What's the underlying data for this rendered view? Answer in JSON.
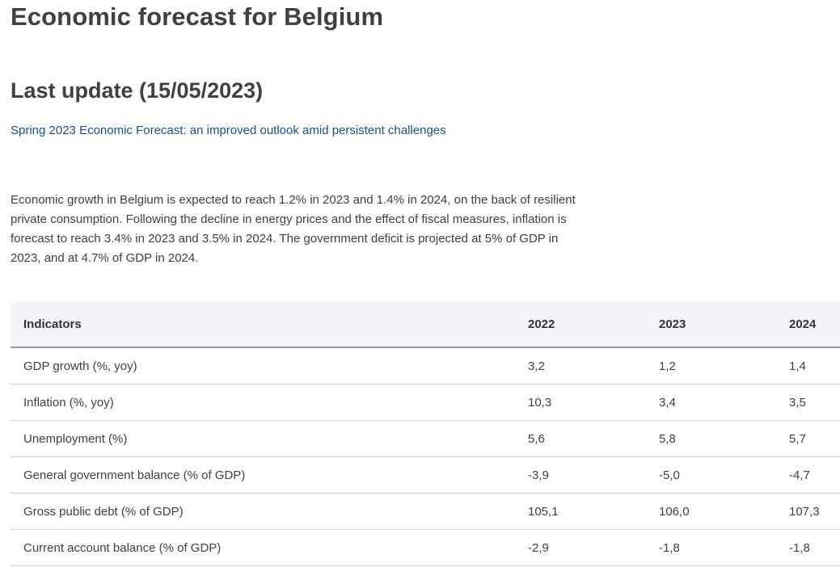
{
  "page": {
    "title": "Economic forecast for Belgium",
    "last_update": "Last update (15/05/2023)",
    "link_text": "Spring 2023 Economic Forecast: an improved outlook amid persistent challenges",
    "summary": "Economic growth in Belgium is expected to reach 1.2% in 2023 and 1.4% in 2024, on the back of resilient private consumption. Following the decline in energy prices and the effect of fiscal measures, inflation is forecast to reach 3.4% in 2023 and 3.5% in 2024. The government deficit is projected at 5% of GDP in 2023, and at 4.7% of GDP in 2024."
  },
  "table": {
    "headers": [
      "Indicators",
      "2022",
      "2023",
      "2024"
    ],
    "rows": [
      [
        "GDP growth (%, yoy)",
        "3,2",
        "1,2",
        "1,4"
      ],
      [
        "Inflation (%, yoy)",
        "10,3",
        "3,4",
        "3,5"
      ],
      [
        "Unemployment (%)",
        "5,6",
        "5,8",
        "5,7"
      ],
      [
        "General government balance (% of GDP)",
        "-3,9",
        "-5,0",
        "-4,7"
      ],
      [
        "Gross public debt (% of GDP)",
        "105,1",
        "106,0",
        "107,3"
      ],
      [
        "Current account balance (% of GDP)",
        "-2,9",
        "-1,8",
        "-1,8"
      ]
    ]
  }
}
